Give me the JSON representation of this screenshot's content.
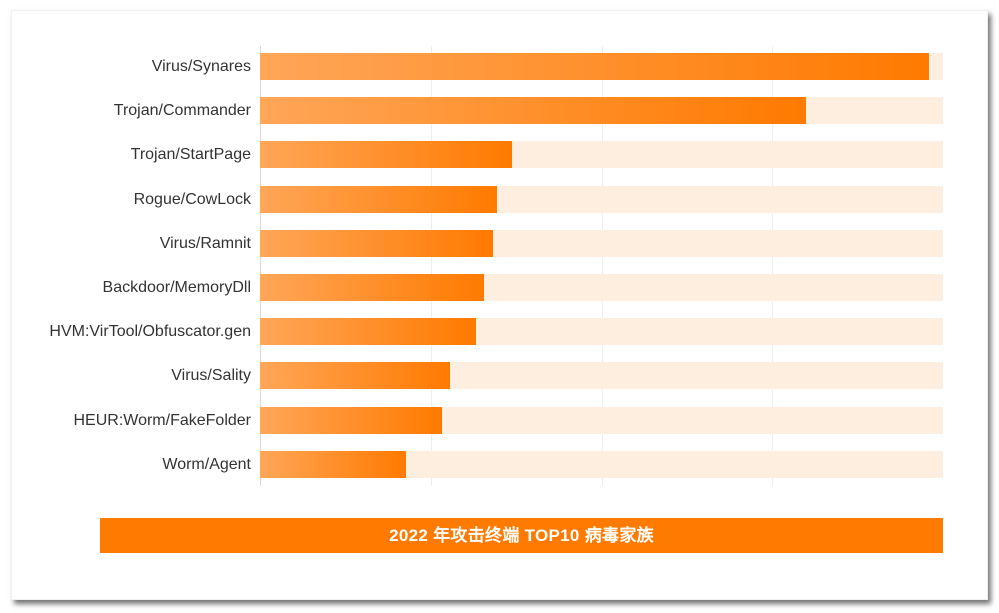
{
  "chart_data": {
    "type": "bar",
    "orientation": "horizontal",
    "title": "2022 年攻击终端 TOP10 病毒家族",
    "xlabel": "",
    "ylabel": "",
    "categories": [
      "Virus/Synares",
      "Trojan/Commander",
      "Trojan/StartPage",
      "Rogue/CowLock",
      "Virus/Ramnit",
      "Backdoor/MemoryDll",
      "HVM:VirTool/Obfuscator.gen",
      "Virus/Sality",
      "HEUR:Worm/FakeFolder",
      "Worm/Agent"
    ],
    "values": [
      98,
      80,
      36.9,
      34.7,
      34.1,
      32.8,
      31.6,
      27.8,
      26.6,
      21.4
    ],
    "value_scale": "relative (0-100, no tick labels shown)",
    "xlim": [
      0,
      100
    ],
    "grid": true,
    "grid_positions": [
      25,
      50,
      75
    ],
    "legend": "none",
    "colors": {
      "bar_start": "#ffa658",
      "bar_end": "#ff7a00",
      "track": "#fdeee0",
      "title_bg": "#ff7a00",
      "title_text": "#ffffff",
      "label_text": "#333333"
    }
  }
}
